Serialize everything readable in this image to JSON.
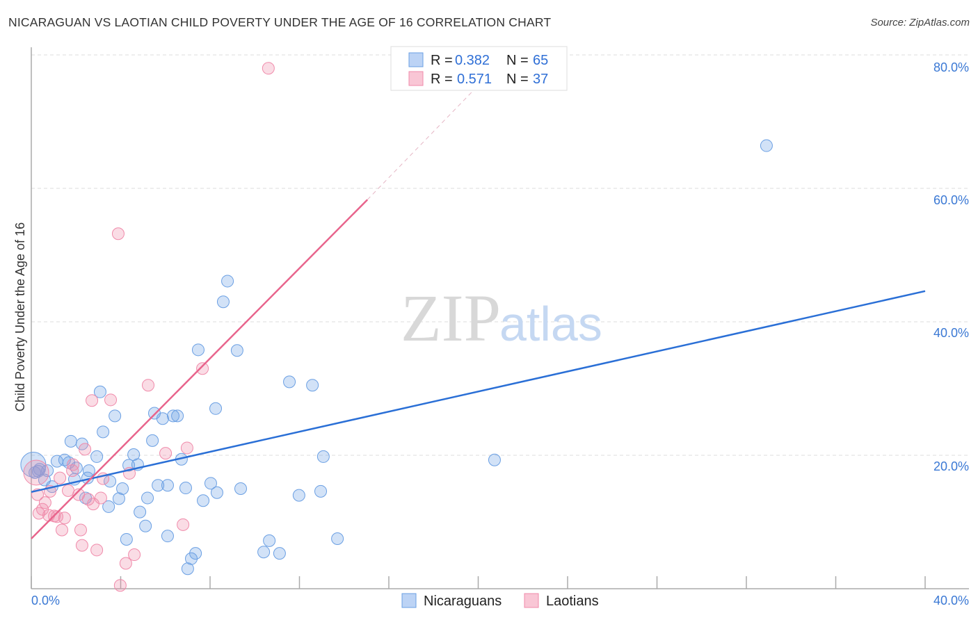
{
  "title": "NICARAGUAN VS LAOTIAN CHILD POVERTY UNDER THE AGE OF 16 CORRELATION CHART",
  "source": "Source: ZipAtlas.com",
  "watermark": {
    "zip": "ZIP",
    "atlas": "atlas"
  },
  "colors": {
    "blue": "#6a9fe3",
    "pink": "#f08aaa",
    "blue_line": "#2a6fd6",
    "pink_line": "#e8648c"
  },
  "chart_data": {
    "type": "scatter",
    "title": "NICARAGUAN VS LAOTIAN CHILD POVERTY UNDER THE AGE OF 16 CORRELATION CHART",
    "xlabel": "",
    "ylabel": "Child Poverty Under the Age of 16",
    "xlim": [
      0,
      40
    ],
    "ylim": [
      0,
      82
    ],
    "x_tick_labels": [
      "0.0%",
      "40.0%"
    ],
    "y_ticks": [
      20,
      40,
      60,
      80
    ],
    "y_tick_labels": [
      "20.0%",
      "40.0%",
      "60.0%",
      "80.0%"
    ],
    "grid": true,
    "legend_placement": "top-center",
    "legend": [
      {
        "r_label": "R = ",
        "r": "0.382",
        "n_label": "N = ",
        "n": "65"
      },
      {
        "r_label": "R = ",
        "r": "0.571",
        "n_label": "N = ",
        "n": "37"
      }
    ],
    "bottom_legend": [
      "Nicaraguans",
      "Laotians"
    ],
    "series": [
      {
        "name": "Nicaraguans",
        "trend": [
          [
            0,
            14.5
          ],
          [
            40,
            44.6
          ]
        ],
        "points": [
          [
            32.9,
            66.4
          ],
          [
            8.78,
            46.1
          ],
          [
            8.59,
            43.0
          ],
          [
            7.47,
            35.8
          ],
          [
            9.21,
            35.7
          ],
          [
            11.55,
            31.0
          ],
          [
            12.58,
            30.5
          ],
          [
            3.08,
            29.5
          ],
          [
            8.25,
            27.0
          ],
          [
            3.74,
            25.9
          ],
          [
            5.51,
            26.3
          ],
          [
            5.88,
            25.5
          ],
          [
            6.35,
            25.9
          ],
          [
            6.54,
            25.9
          ],
          [
            3.21,
            23.5
          ],
          [
            1.77,
            22.1
          ],
          [
            2.27,
            21.7
          ],
          [
            5.42,
            22.2
          ],
          [
            2.93,
            19.8
          ],
          [
            4.58,
            20.1
          ],
          [
            4.36,
            18.5
          ],
          [
            4.76,
            18.6
          ],
          [
            6.72,
            19.4
          ],
          [
            20.73,
            19.3
          ],
          [
            13.07,
            19.8
          ],
          [
            1.15,
            19.1
          ],
          [
            1.49,
            19.3
          ],
          [
            1.68,
            18.9
          ],
          [
            2.02,
            18.1
          ],
          [
            2.58,
            17.7
          ],
          [
            0.31,
            17.6
          ],
          [
            0.72,
            17.7
          ],
          [
            0.37,
            17.9
          ],
          [
            1.93,
            16.4
          ],
          [
            2.52,
            16.6
          ],
          [
            3.52,
            16.1
          ],
          [
            0.59,
            16.3
          ],
          [
            0.93,
            15.3
          ],
          [
            5.67,
            15.5
          ],
          [
            6.1,
            15.5
          ],
          [
            4.08,
            15.0
          ],
          [
            6.91,
            15.1
          ],
          [
            8.03,
            15.8
          ],
          [
            8.31,
            14.4
          ],
          [
            9.37,
            15.0
          ],
          [
            11.98,
            14.0
          ],
          [
            12.95,
            14.6
          ],
          [
            2.43,
            13.6
          ],
          [
            3.92,
            13.5
          ],
          [
            5.2,
            13.6
          ],
          [
            7.69,
            13.2
          ],
          [
            3.46,
            12.3
          ],
          [
            4.86,
            11.5
          ],
          [
            5.11,
            9.4
          ],
          [
            4.26,
            7.4
          ],
          [
            6.1,
            7.9
          ],
          [
            10.65,
            7.2
          ],
          [
            13.7,
            7.5
          ],
          [
            7.35,
            5.3
          ],
          [
            7.16,
            4.5
          ],
          [
            10.4,
            5.5
          ],
          [
            11.11,
            5.3
          ],
          [
            7.0,
            3.0
          ],
          [
            0.09,
            18.6
          ],
          [
            0.16,
            17.4
          ]
        ]
      },
      {
        "name": "Laotians",
        "trend": [
          [
            0,
            7.5
          ],
          [
            15.04,
            58.3
          ]
        ],
        "trend_dashed_to": [
          20.4,
          76.8
        ],
        "points": [
          [
            10.61,
            78.0
          ],
          [
            3.89,
            53.2
          ],
          [
            7.66,
            33.0
          ],
          [
            5.23,
            30.5
          ],
          [
            2.71,
            28.2
          ],
          [
            3.55,
            28.3
          ],
          [
            6.97,
            21.1
          ],
          [
            6.01,
            20.3
          ],
          [
            2.4,
            20.9
          ],
          [
            1.87,
            18.6
          ],
          [
            1.84,
            17.7
          ],
          [
            3.21,
            16.5
          ],
          [
            4.39,
            17.3
          ],
          [
            1.28,
            16.6
          ],
          [
            0.22,
            17.4
          ],
          [
            0.28,
            14.1
          ],
          [
            0.84,
            14.6
          ],
          [
            1.65,
            14.7
          ],
          [
            2.12,
            14.1
          ],
          [
            2.55,
            13.4
          ],
          [
            2.77,
            12.7
          ],
          [
            3.11,
            13.6
          ],
          [
            0.62,
            12.9
          ],
          [
            0.34,
            11.3
          ],
          [
            0.5,
            11.9
          ],
          [
            0.78,
            11.0
          ],
          [
            1.03,
            10.9
          ],
          [
            1.49,
            10.6
          ],
          [
            1.15,
            10.8
          ],
          [
            1.37,
            8.8
          ],
          [
            2.21,
            8.8
          ],
          [
            6.79,
            9.6
          ],
          [
            2.27,
            6.5
          ],
          [
            2.93,
            5.8
          ],
          [
            4.61,
            5.1
          ],
          [
            4.23,
            3.8
          ],
          [
            3.98,
            0.5
          ]
        ]
      }
    ]
  }
}
